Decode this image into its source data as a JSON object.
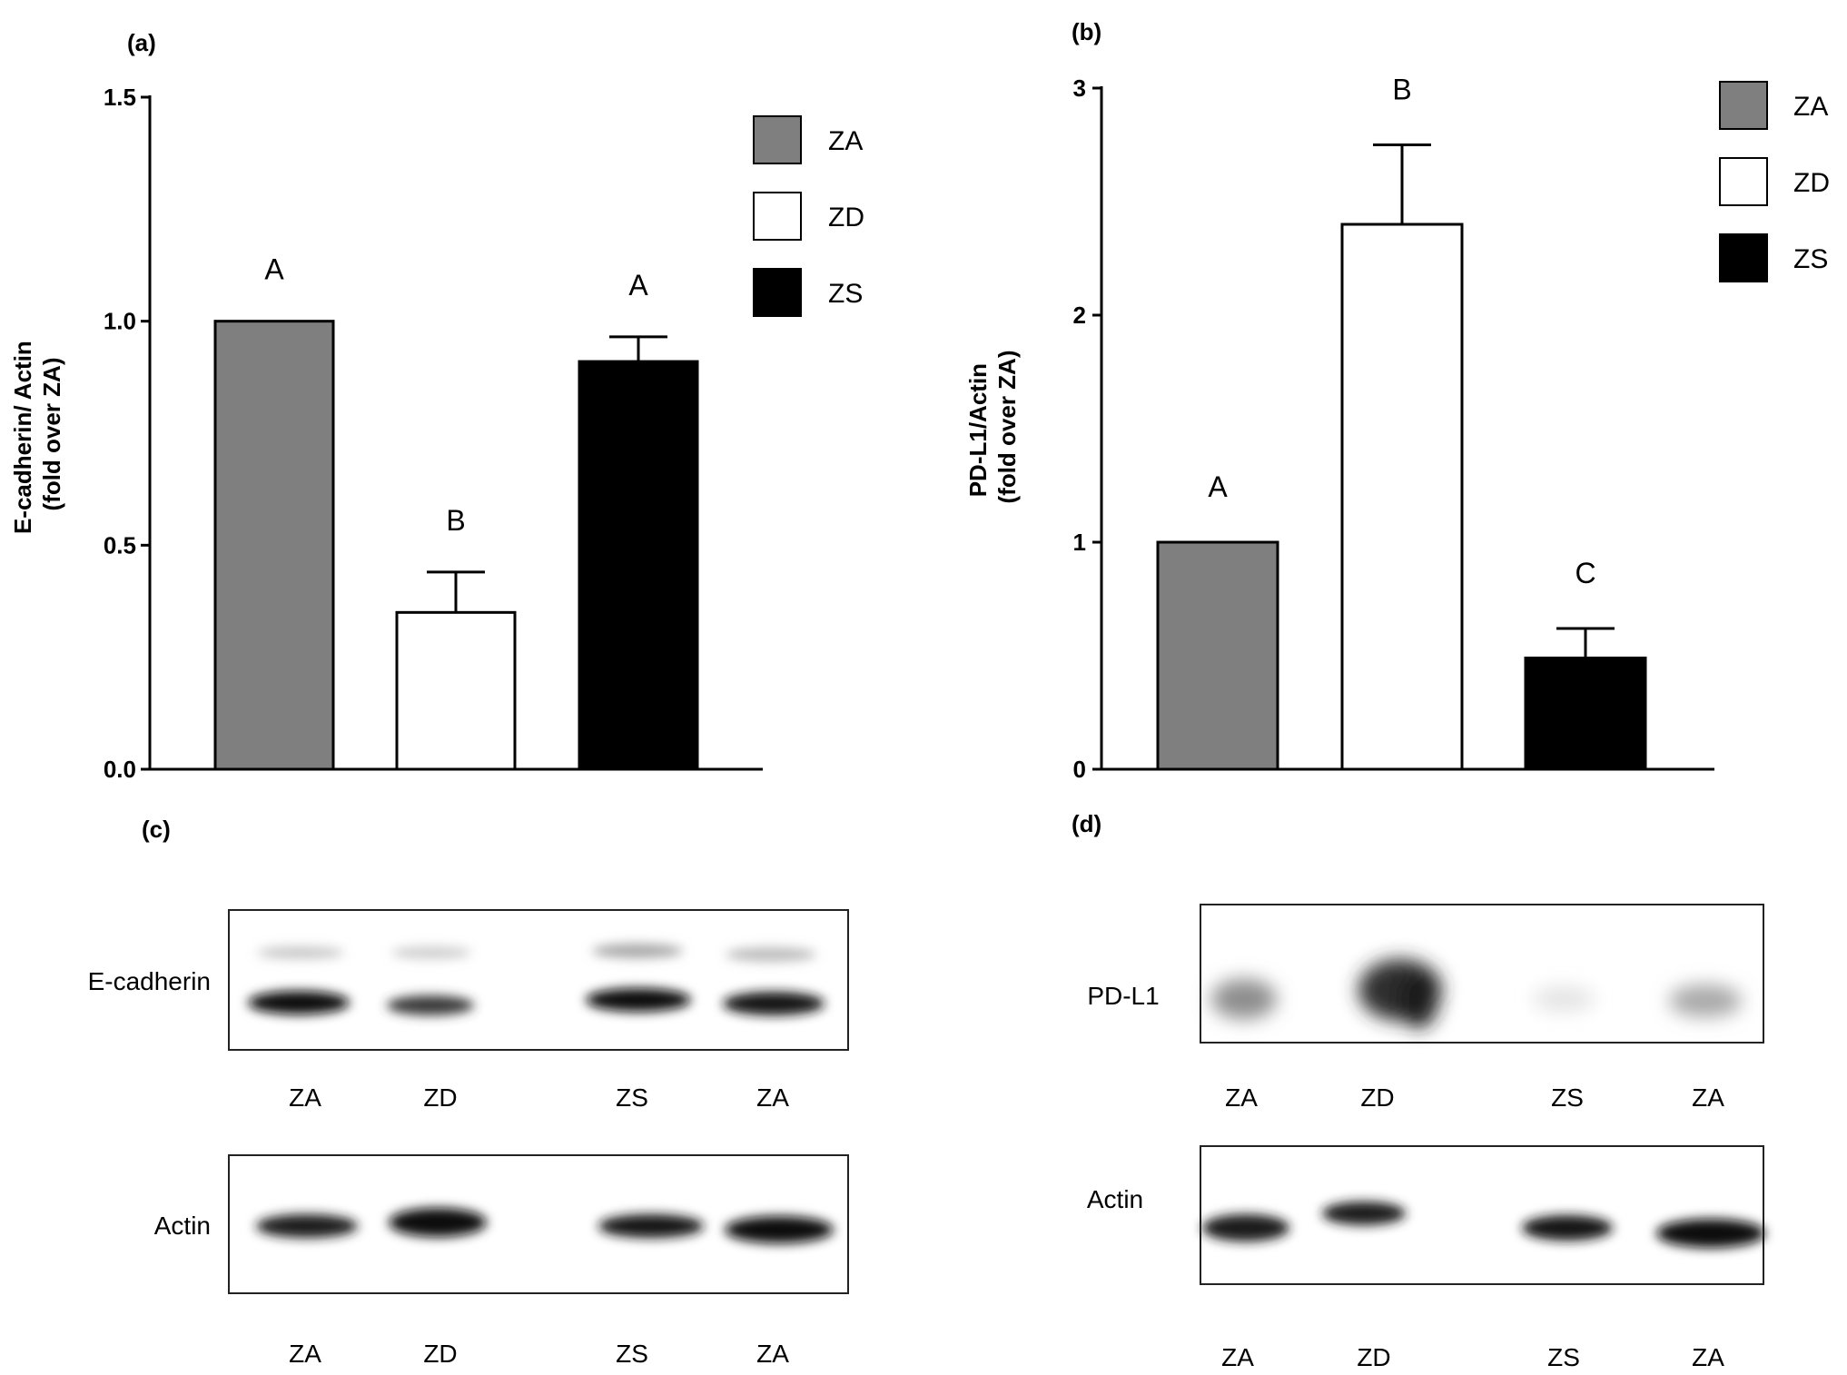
{
  "panels": {
    "a": {
      "label": "(a)"
    },
    "b": {
      "label": "(b)"
    },
    "c": {
      "label": "(c)"
    },
    "d": {
      "label": "(d)"
    }
  },
  "chart_data": [
    {
      "panel": "a",
      "type": "bar",
      "categories": [
        "ZA",
        "ZD",
        "ZS"
      ],
      "values": [
        1.0,
        0.35,
        0.91
      ],
      "errors": [
        0,
        0.09,
        0.055
      ],
      "significance": [
        "A",
        "B",
        "A"
      ],
      "colors": [
        "#7f7f7f",
        "#ffffff",
        "#000000"
      ],
      "ylabel_line1": "E-cadherin/ Actin",
      "ylabel_line2": "(fold over ZA)",
      "ylim": [
        0,
        1.5
      ],
      "yticks": [
        0.0,
        0.5,
        1.0,
        1.5
      ],
      "ytick_labels": [
        "0.0",
        "0.5",
        "1.0",
        "1.5"
      ],
      "legend": [
        "ZA",
        "ZD",
        "ZS"
      ],
      "legend_position": "top-right",
      "grid": false
    },
    {
      "panel": "b",
      "type": "bar",
      "categories": [
        "ZA",
        "ZD",
        "ZS"
      ],
      "values": [
        1.0,
        2.4,
        0.49
      ],
      "errors": [
        0,
        0.35,
        0.13
      ],
      "significance": [
        "A",
        "B",
        "C"
      ],
      "colors": [
        "#7f7f7f",
        "#ffffff",
        "#000000"
      ],
      "ylabel_line1": "PD-L1/Actin",
      "ylabel_line2": "(fold over ZA)",
      "ylim": [
        0,
        3
      ],
      "yticks": [
        0,
        1,
        2,
        3
      ],
      "ytick_labels": [
        "0",
        "1",
        "2",
        "3"
      ],
      "legend": [
        "ZA",
        "ZD",
        "ZS"
      ],
      "legend_position": "top-right",
      "grid": false
    }
  ],
  "blots": {
    "c": {
      "rows": [
        {
          "label": "E-cadherin",
          "lanes": [
            "ZA",
            "ZD",
            "ZS",
            "ZA"
          ]
        },
        {
          "label": "Actin",
          "lanes": [
            "ZA",
            "ZD",
            "ZS",
            "ZA"
          ]
        }
      ]
    },
    "d": {
      "rows": [
        {
          "label": "PD-L1",
          "lanes": [
            "ZA",
            "ZD",
            "ZS",
            "ZA"
          ]
        },
        {
          "label": "Actin",
          "lanes": [
            "ZA",
            "ZD",
            "ZS",
            "ZA"
          ]
        }
      ]
    }
  }
}
